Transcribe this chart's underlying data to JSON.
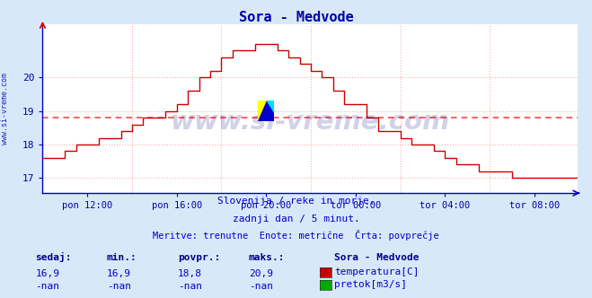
{
  "title": "Sora - Medvode",
  "title_color": "#0000aa",
  "bg_color": "#d8e8f8",
  "plot_bg_color": "#ffffff",
  "grid_color": "#ffaaaa",
  "axis_color": "#0000cc",
  "line_color": "#cc0000",
  "avg_line_color": "#ff4444",
  "avg_line_value": 18.8,
  "x_labels": [
    "pon 12:00",
    "pon 16:00",
    "pon 20:00",
    "tor 00:00",
    "tor 04:00",
    "tor 08:00"
  ],
  "x_label_color": "#0000aa",
  "y_ticks": [
    17,
    18,
    19,
    20
  ],
  "ylim_min": 16.55,
  "ylim_max": 21.6,
  "subtitle1": "Slovenija / reke in morje.",
  "subtitle2": "zadnji dan / 5 minut.",
  "subtitle3": "Meritve: trenutne  Enote: metrične  Črta: povprečje",
  "subtitle_color": "#0000cc",
  "legend_title": "Sora - Medvode",
  "legend_title_color": "#000088",
  "legend_items": [
    {
      "label": "temperatura[C]",
      "color": "#cc0000"
    },
    {
      "label": "pretok[m3/s]",
      "color": "#00aa00"
    }
  ],
  "stats_headers": [
    "sedaj:",
    "min.:",
    "povpr.:",
    "maks.:"
  ],
  "stats_row1": [
    "16,9",
    "16,9",
    "18,8",
    "20,9"
  ],
  "stats_row2": [
    "-nan",
    "-nan",
    "-nan",
    "-nan"
  ],
  "stats_color": "#0000cc",
  "stats_header_color": "#000088",
  "left_label": "www.si-vreme.com",
  "left_label_color": "#0000aa",
  "watermark_text": "www.si-vreme.com"
}
